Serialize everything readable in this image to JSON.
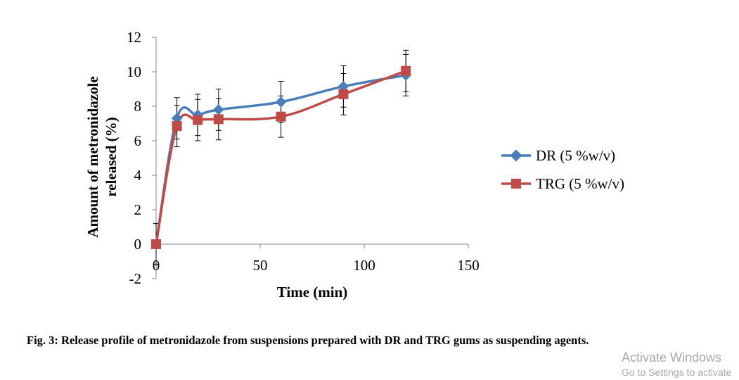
{
  "chart_data": {
    "type": "line",
    "title": "",
    "xlabel": "Time (min)",
    "ylabel_lines": [
      "Amount of metronidazole",
      "released (%)"
    ],
    "xlim": [
      0,
      150
    ],
    "ylim": [
      -2,
      12
    ],
    "x_ticks": [
      0,
      50,
      100,
      150
    ],
    "y_ticks": [
      -2,
      0,
      2,
      4,
      6,
      8,
      10,
      12
    ],
    "grid": false,
    "legend_position": "right",
    "series": [
      {
        "name": "DR (5 %w/v)",
        "color": "#4A7EBB",
        "marker": "diamond",
        "x": [
          0,
          10,
          20,
          30,
          60,
          90,
          120
        ],
        "y": [
          0,
          7.3,
          7.5,
          7.8,
          8.25,
          9.15,
          9.8
        ],
        "error": [
          1.2,
          1.2,
          1.2,
          1.2,
          1.2,
          1.2,
          1.2
        ]
      },
      {
        "name": "TRG (5 %w/v)",
        "color": "#BE4B48",
        "marker": "square",
        "x": [
          0,
          10,
          20,
          30,
          60,
          90,
          120
        ],
        "y": [
          0,
          6.85,
          7.2,
          7.25,
          7.4,
          8.7,
          10.05
        ],
        "error": [
          1.2,
          1.2,
          1.2,
          1.2,
          1.2,
          1.2,
          1.2
        ]
      }
    ]
  },
  "caption": "Fig. 3: Release profile of metronidazole from suspensions prepared with DR and TRG gums as suspending agents.",
  "watermark": {
    "title": "Activate Windows",
    "subtitle": "Go to Settings to activate"
  }
}
